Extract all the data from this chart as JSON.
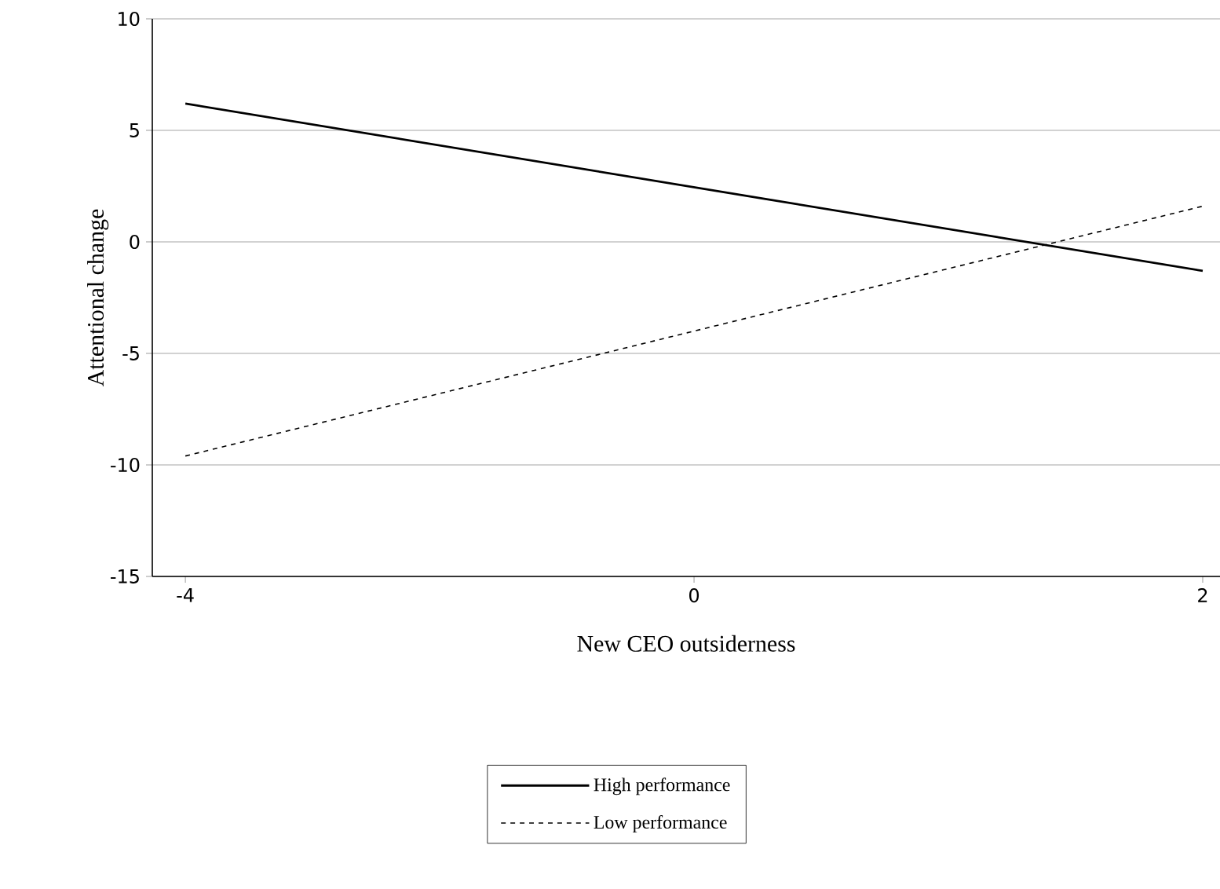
{
  "chart_data": {
    "type": "line",
    "xlabel": "New CEO outsiderness",
    "ylabel": "Attentional change",
    "categories": [
      "-4",
      "0",
      "2"
    ],
    "ylim": [
      -15,
      10
    ],
    "yticks": [
      -15,
      -10,
      -5,
      0,
      5,
      10
    ],
    "grid": "y",
    "legend": "bottom",
    "series": [
      {
        "name": "High performance",
        "color": "#000000",
        "line_style": "solid",
        "values": [
          6.2,
          2.45,
          -1.3
        ]
      },
      {
        "name": "Low performance",
        "color": "#000000",
        "line_style": "dashed",
        "values": [
          -9.6,
          -4.0,
          1.6
        ]
      }
    ]
  }
}
